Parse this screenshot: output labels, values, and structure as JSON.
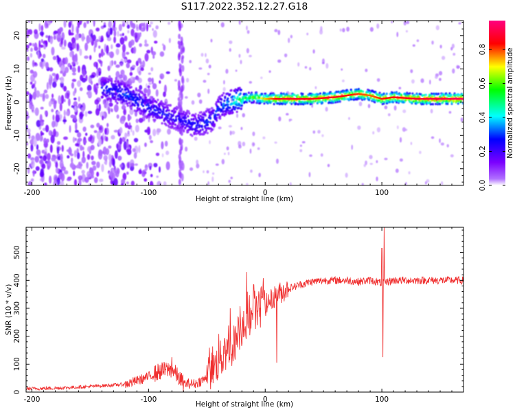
{
  "figure": {
    "title": "S117.2022.352.12.27.G18"
  },
  "chart_data": [
    {
      "type": "heatmap",
      "title": "",
      "xlabel": "Height of straight line (km)",
      "ylabel": "Frequency (Hz)",
      "xlim": [
        -205,
        170
      ],
      "ylim": [
        -25,
        24.5
      ],
      "xticks": [
        -200,
        -100,
        0,
        100
      ],
      "yticks": [
        -20,
        -10,
        0,
        10,
        20
      ],
      "colorbar": {
        "label": "Normalized spectral amplitude",
        "range": [
          0.0,
          0.97
        ],
        "ticks": [
          0.0,
          0.2,
          0.4,
          0.6,
          0.8
        ],
        "tick_labels": [
          "0.0",
          "0.2",
          "0.4",
          "0.6",
          "0.8"
        ],
        "colormap": [
          "#ffffff",
          "#7b00ff",
          "#0000ff",
          "#00ffff",
          "#00ff00",
          "#ffff00",
          "#ff0000",
          "#ff007f"
        ]
      },
      "ridge": {
        "x": [
          -140,
          -130,
          -120,
          -110,
          -100,
          -90,
          -80,
          -70,
          -60,
          -50,
          -45,
          -40,
          -35,
          -30,
          -25,
          -20,
          -10,
          0,
          10,
          20,
          40,
          60,
          80,
          90,
          100,
          110,
          130,
          150,
          170
        ],
        "y": [
          4,
          3.5,
          2.5,
          0.5,
          -1.5,
          -3,
          -4.5,
          -5.5,
          -7,
          -6,
          -5,
          -2,
          -0.5,
          0,
          0.5,
          1,
          1.5,
          1,
          1,
          1,
          1,
          1.5,
          2.5,
          2,
          1,
          1.5,
          1,
          1,
          1
        ],
        "amplitude": [
          0.3,
          0.3,
          0.32,
          0.3,
          0.28,
          0.28,
          0.26,
          0.25,
          0.28,
          0.3,
          0.3,
          0.32,
          0.35,
          0.4,
          0.5,
          0.55,
          0.62,
          0.7,
          0.82,
          0.85,
          0.82,
          0.85,
          0.78,
          0.75,
          0.8,
          0.82,
          0.85,
          0.88,
          0.9
        ]
      },
      "noise_region_x": [
        -205,
        -120
      ],
      "spike_x": -72
    },
    {
      "type": "line",
      "title": "",
      "xlabel": "Height of straight line (km)",
      "ylabel": "SNR (10 * v/v)",
      "xlim": [
        -205,
        170
      ],
      "ylim": [
        0,
        590
      ],
      "xticks": [
        -200,
        -100,
        0,
        100
      ],
      "yticks": [
        0,
        100,
        200,
        300,
        400,
        500
      ],
      "series": [
        {
          "color": "#f03030",
          "envelope_x": [
            -205,
            -180,
            -150,
            -120,
            -110,
            -100,
            -90,
            -80,
            -70,
            -60,
            -50,
            -40,
            -30,
            -20,
            -10,
            0,
            10,
            20,
            30,
            40,
            50,
            60,
            70,
            80,
            90,
            100,
            110,
            130,
            150,
            170
          ],
          "envelope_y": [
            12,
            14,
            20,
            28,
            40,
            55,
            75,
            82,
            30,
            30,
            50,
            110,
            150,
            230,
            285,
            310,
            350,
            370,
            385,
            395,
            400,
            400,
            400,
            395,
            400,
            390,
            400,
            400,
            400,
            400
          ],
          "peaks": [
            {
              "x": -80,
              "y": 125
            },
            {
              "x": -30,
              "y": 300
            },
            {
              "x": -16,
              "y": 430
            },
            {
              "x": -10,
              "y": 385
            },
            {
              "x": 10,
              "y": 105
            },
            {
              "x": 100,
              "y": 515
            },
            {
              "x": 102,
              "y": 590
            },
            {
              "x": 101,
              "y": 125
            }
          ]
        }
      ]
    }
  ]
}
